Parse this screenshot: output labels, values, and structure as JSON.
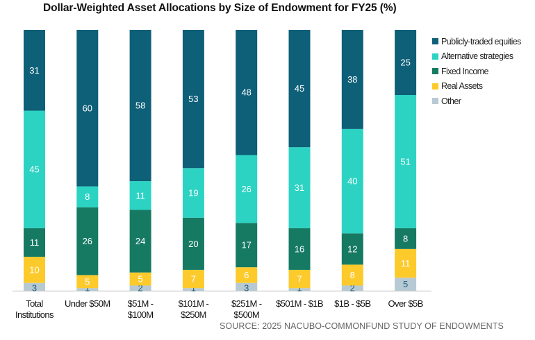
{
  "chart_data": {
    "type": "bar",
    "stacked": true,
    "title": "Dollar-Weighted Asset Allocations by Size of Endowment for FY25 (%)",
    "xlabel": "",
    "ylabel": "",
    "ylim": [
      0,
      100
    ],
    "grid": false,
    "legend_position": "top-right",
    "categories": [
      [
        "Total",
        "Institutions"
      ],
      [
        "Under $50M"
      ],
      [
        "$51M -",
        "$100M"
      ],
      [
        "$101M -",
        "$250M"
      ],
      [
        "$251M -",
        "$500M"
      ],
      [
        "$501M - $1B"
      ],
      [
        "$1B - $5B"
      ],
      [
        "Over $5B"
      ]
    ],
    "series": [
      {
        "name": "Other",
        "color": "#b7c9d3",
        "label_color": "#1f5f7a",
        "values": [
          3,
          1,
          2,
          1,
          3,
          1,
          2,
          5
        ]
      },
      {
        "name": "Real Assets",
        "color": "#fdca2c",
        "label_color": "#ffffff",
        "values": [
          10,
          5,
          5,
          7,
          6,
          7,
          8,
          11
        ]
      },
      {
        "name": "Fixed Income",
        "color": "#167a63",
        "label_color": "#ffffff",
        "values": [
          11,
          26,
          24,
          20,
          17,
          16,
          12,
          8
        ]
      },
      {
        "name": "Alternative strategies",
        "color": "#2cd3c3",
        "label_color": "#ffffff",
        "values": [
          45,
          8,
          11,
          19,
          26,
          31,
          40,
          51
        ]
      },
      {
        "name": "Publicly-traded equities",
        "color": "#0e5f78",
        "label_color": "#ffffff",
        "values": [
          31,
          60,
          58,
          53,
          48,
          45,
          38,
          25
        ]
      }
    ],
    "legend_order": [
      "Publicly-traded equities",
      "Alternative strategies",
      "Fixed Income",
      "Real Assets",
      "Other"
    ]
  },
  "source": "SOURCE: 2025 NACUBO-COMMONFUND STUDY OF ENDOWMENTS"
}
